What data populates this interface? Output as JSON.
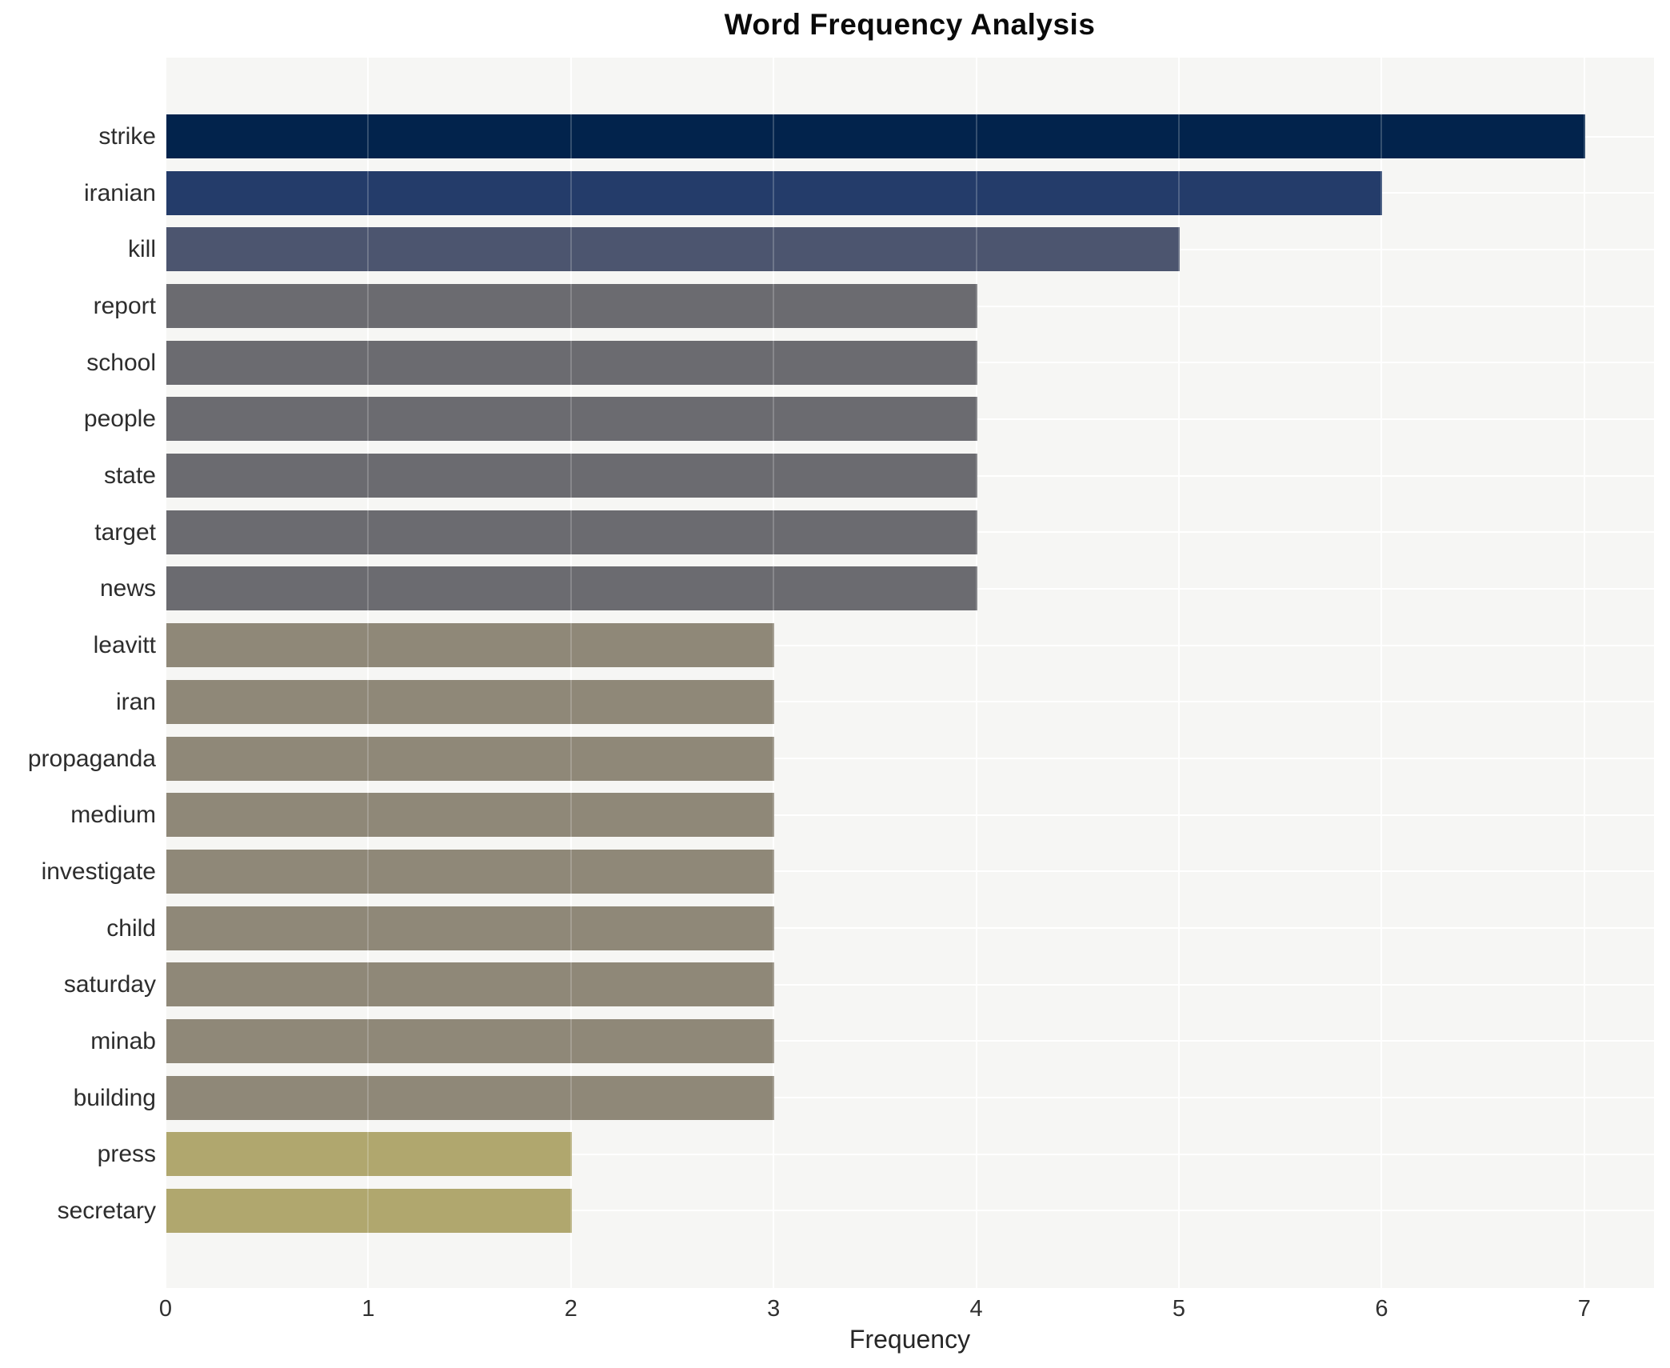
{
  "title": "Word Frequency Analysis",
  "chart_data": {
    "type": "bar",
    "orientation": "horizontal",
    "title": "Word Frequency Analysis",
    "xlabel": "Frequency",
    "ylabel": "",
    "categories": [
      "strike",
      "iranian",
      "kill",
      "report",
      "school",
      "people",
      "state",
      "target",
      "news",
      "leavitt",
      "iran",
      "propaganda",
      "medium",
      "investigate",
      "child",
      "saturday",
      "minab",
      "building",
      "press",
      "secretary"
    ],
    "values": [
      7,
      6,
      5,
      4,
      4,
      4,
      4,
      4,
      4,
      3,
      3,
      3,
      3,
      3,
      3,
      3,
      3,
      3,
      2,
      2
    ],
    "bar_colors": [
      "#02234c",
      "#243c6a",
      "#4c556f",
      "#6b6b70",
      "#6b6b70",
      "#6b6b70",
      "#6b6b70",
      "#6b6b70",
      "#6b6b70",
      "#8f8878",
      "#8f8878",
      "#8f8878",
      "#8f8878",
      "#8f8878",
      "#8f8878",
      "#8f8878",
      "#8f8878",
      "#8f8878",
      "#b0a76e",
      "#b0a76e"
    ],
    "xticks": [
      "0",
      "1",
      "2",
      "3",
      "4",
      "5",
      "6",
      "7"
    ],
    "xlim": [
      0,
      7.34
    ],
    "grid": true,
    "legend": false,
    "plot_background": "#f6f6f4",
    "grid_color": "#ffffff",
    "text_color": "#2d2d2d"
  }
}
